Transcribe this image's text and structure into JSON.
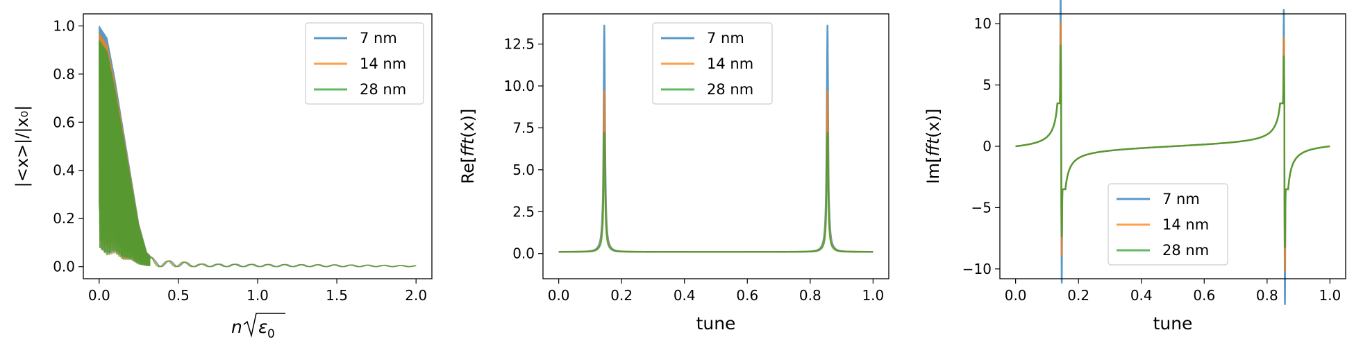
{
  "chart_data": [
    {
      "type": "line",
      "title": "",
      "xlabel_parts": {
        "pre": "n",
        "radical": "ε",
        "sub": "0"
      },
      "ylabel": "|<x>|/|x₀|",
      "xlim": [
        -0.1,
        2.1
      ],
      "ylim": [
        -0.05,
        1.05
      ],
      "xticks": [
        "0.0",
        "0.5",
        "1.0",
        "1.5",
        "2.0"
      ],
      "yticks": [
        "0.0",
        "0.2",
        "0.4",
        "0.6",
        "0.8",
        "1.0"
      ],
      "legend": "top-right",
      "grid": false,
      "series": [
        {
          "name": "7 nm",
          "color": "#1f77b4"
        },
        {
          "name": "14 nm",
          "color": "#ff7f0e"
        },
        {
          "name": "28 nm",
          "color": "#2ca02c"
        }
      ],
      "envelope": {
        "x": [
          0.0,
          0.05,
          0.1,
          0.15,
          0.2,
          0.25,
          0.3,
          0.35,
          0.4,
          0.5,
          0.6,
          1.0,
          1.5,
          2.0
        ],
        "upper": [
          1.0,
          0.95,
          0.78,
          0.58,
          0.38,
          0.18,
          0.06,
          0.03,
          0.025,
          0.025,
          0.012,
          0.01,
          0.008,
          0.005
        ],
        "lower": [
          0.03,
          0.0,
          0.02,
          0.0,
          0.01,
          0.0,
          0.0,
          0.0,
          0.0,
          0.0,
          0.0,
          0.0,
          0.0,
          0.0
        ]
      }
    },
    {
      "type": "line",
      "title": "",
      "xlabel": "tune",
      "ylabel_parts": {
        "pre": "Re[",
        "italic": "fft",
        "post": "(x)]"
      },
      "xlim": [
        -0.05,
        1.05
      ],
      "ylim": [
        -1.5,
        14.3
      ],
      "xticks": [
        "0.0",
        "0.2",
        "0.4",
        "0.6",
        "0.8",
        "1.0"
      ],
      "yticks": [
        "0.0",
        "2.5",
        "5.0",
        "7.5",
        "10.0",
        "12.5"
      ],
      "legend": "top-center",
      "grid": false,
      "peak_tunes": [
        0.145,
        0.855
      ],
      "baseline": 0.1,
      "series": [
        {
          "name": "7 nm",
          "color": "#1f77b4",
          "peak": 13.5,
          "dip": -0.6
        },
        {
          "name": "14 nm",
          "color": "#ff7f0e",
          "peak": 9.6,
          "dip": -0.45
        },
        {
          "name": "28 nm",
          "color": "#2ca02c",
          "peak": 7.1,
          "dip": -0.3
        }
      ]
    },
    {
      "type": "line",
      "title": "",
      "xlabel": "tune",
      "ylabel_parts": {
        "pre": "Im[",
        "italic": "fft",
        "post": "(x)]"
      },
      "xlim": [
        -0.05,
        1.05
      ],
      "ylim": [
        -10.8,
        10.8
      ],
      "xticks": [
        "0.0",
        "0.2",
        "0.4",
        "0.6",
        "0.8",
        "1.0"
      ],
      "yticks": [
        "−10",
        "−5",
        "0",
        "5",
        "10"
      ],
      "legend": "bottom-center",
      "grid": false,
      "peak_tunes": [
        0.145,
        0.855
      ],
      "series": [
        {
          "name": "7 nm",
          "color": "#1f77b4",
          "extremes": [
            [
              9.7,
              -7.9
            ],
            [
              7.9,
              -9.7
            ]
          ]
        },
        {
          "name": "14 nm",
          "color": "#ff7f0e",
          "extremes": [
            [
              6.9,
              -5.6
            ],
            [
              5.6,
              -6.9
            ]
          ]
        },
        {
          "name": "28 nm",
          "color": "#2ca02c",
          "extremes": [
            [
              4.9,
              -4.0
            ],
            [
              4.0,
              -4.9
            ]
          ]
        }
      ]
    }
  ]
}
